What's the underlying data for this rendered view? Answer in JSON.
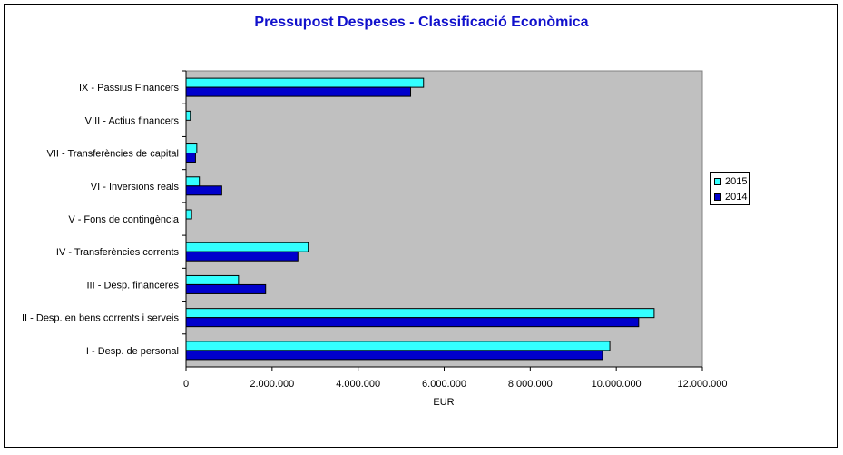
{
  "chart_data": {
    "type": "bar",
    "orientation": "horizontal",
    "title": "Pressupost Despeses - Classificació Econòmica",
    "xlabel": "EUR",
    "ylabel": "",
    "xlim": [
      0,
      12000000
    ],
    "x_ticks": [
      0,
      2000000,
      4000000,
      6000000,
      8000000,
      10000000,
      12000000
    ],
    "x_tick_labels": [
      "0",
      "2.000.000",
      "4.000.000",
      "6.000.000",
      "8.000.000",
      "10.000.000",
      "12.000.000"
    ],
    "categories": [
      "IX - Passius Financers",
      "VIII - Actius financers",
      "VII - Transferències de capital",
      "VI - Inversions reals",
      "V - Fons de contingència",
      "IV - Transferències corrents",
      "III - Desp. financeres",
      "II - Desp. en bens corrents i serveis",
      "I - Desp. de personal"
    ],
    "series": [
      {
        "name": "2015",
        "color": "#33ffff",
        "values": [
          5520000,
          100000,
          250000,
          310000,
          130000,
          2840000,
          1220000,
          10880000,
          9850000
        ]
      },
      {
        "name": "2014",
        "color": "#0000cc",
        "values": [
          5220000,
          0,
          220000,
          830000,
          0,
          2600000,
          1850000,
          10520000,
          9680000
        ]
      }
    ],
    "grid": false,
    "plot_background": "#c0c0c0",
    "legend_position": "right"
  }
}
